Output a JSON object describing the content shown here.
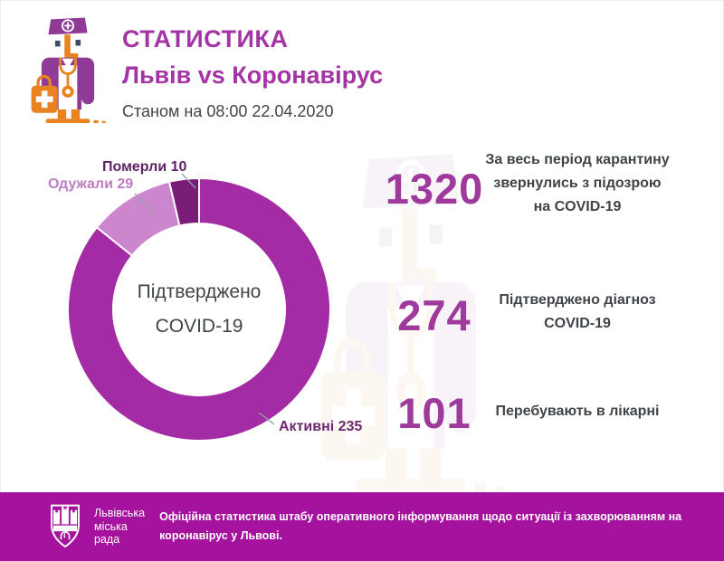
{
  "header": {
    "title": "СТАТИСТИКА",
    "subtitle": "Львів vs Коронавірус",
    "as_of": "Станом на 08:00 22.04.2020"
  },
  "chart_data": {
    "type": "pie",
    "donut": true,
    "total": 274,
    "center_label_lines": [
      "Підтверджено",
      "COVID-19"
    ],
    "segments": [
      {
        "label": "Активні",
        "value": 235,
        "color": "#A32BA4",
        "callout": "Активні 235"
      },
      {
        "label": "Одужали",
        "value": 29,
        "color": "#CC86CE",
        "callout": "Одужали 29"
      },
      {
        "label": "Померли",
        "value": 10,
        "color": "#7A1D78",
        "callout": "Померли 10"
      }
    ],
    "legend_position": "callouts",
    "start_angle_deg": 0,
    "direction": "clockwise"
  },
  "stats": [
    {
      "value": "1320",
      "caption_lines": [
        "За весь період карантину",
        "звернулись з підозрою",
        "на COVID-19"
      ]
    },
    {
      "value": "274",
      "caption_lines": [
        "Підтверджено діагноз",
        "COVID-19"
      ]
    },
    {
      "value": "101",
      "caption_lines": [
        "Перебувають в лікарні"
      ]
    }
  ],
  "footer": {
    "org_lines": [
      "Львівська",
      "міська",
      "рада"
    ],
    "text_lines": [
      "Офіційна статистика штабу оперативного інформування щодо ситуації із захворюванням на",
      "коронавірус у Львові."
    ]
  },
  "icons": {
    "doctor": "doctor-icon",
    "emblem": "lviv-city-council-emblem"
  },
  "colors": {
    "accent": "#A434A6",
    "number": "#9E3A9C",
    "text_dark": "#3F4449",
    "footer_bg": "#A4129E",
    "icon_purple": "#8E3A96",
    "icon_orange": "#E8831F",
    "leader_line": "#97A0A6"
  }
}
